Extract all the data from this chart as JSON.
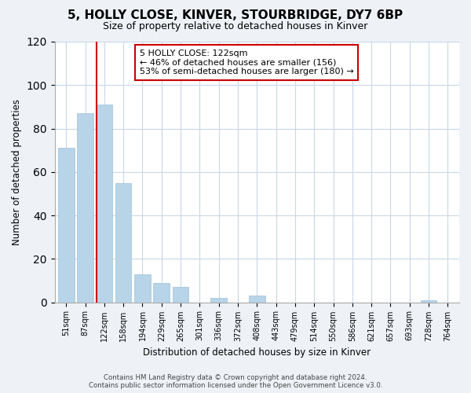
{
  "title": "5, HOLLY CLOSE, KINVER, STOURBRIDGE, DY7 6BP",
  "subtitle": "Size of property relative to detached houses in Kinver",
  "xlabel": "Distribution of detached houses by size in Kinver",
  "ylabel": "Number of detached properties",
  "bin_labels": [
    "51sqm",
    "87sqm",
    "122sqm",
    "158sqm",
    "194sqm",
    "229sqm",
    "265sqm",
    "301sqm",
    "336sqm",
    "372sqm",
    "408sqm",
    "443sqm",
    "479sqm",
    "514sqm",
    "550sqm",
    "586sqm",
    "621sqm",
    "657sqm",
    "693sqm",
    "728sqm",
    "764sqm"
  ],
  "bar_heights": [
    71,
    87,
    91,
    55,
    13,
    9,
    7,
    0,
    2,
    0,
    3,
    0,
    0,
    0,
    0,
    0,
    0,
    0,
    0,
    1,
    0
  ],
  "bar_color": "#b8d4e8",
  "bar_edge_color": "#a0c0d8",
  "highlight_line_index": 2,
  "highlight_line_color": "#cc0000",
  "ylim": [
    0,
    120
  ],
  "yticks": [
    0,
    20,
    40,
    60,
    80,
    100,
    120
  ],
  "annotation_box_text": "5 HOLLY CLOSE: 122sqm\n← 46% of detached houses are smaller (156)\n53% of semi-detached houses are larger (180) →",
  "footer_line1": "Contains HM Land Registry data © Crown copyright and database right 2024.",
  "footer_line2": "Contains public sector information licensed under the Open Government Licence v3.0.",
  "background_color": "#eef2f7",
  "plot_bg_color": "#ffffff",
  "grid_color": "#c8d8e8"
}
